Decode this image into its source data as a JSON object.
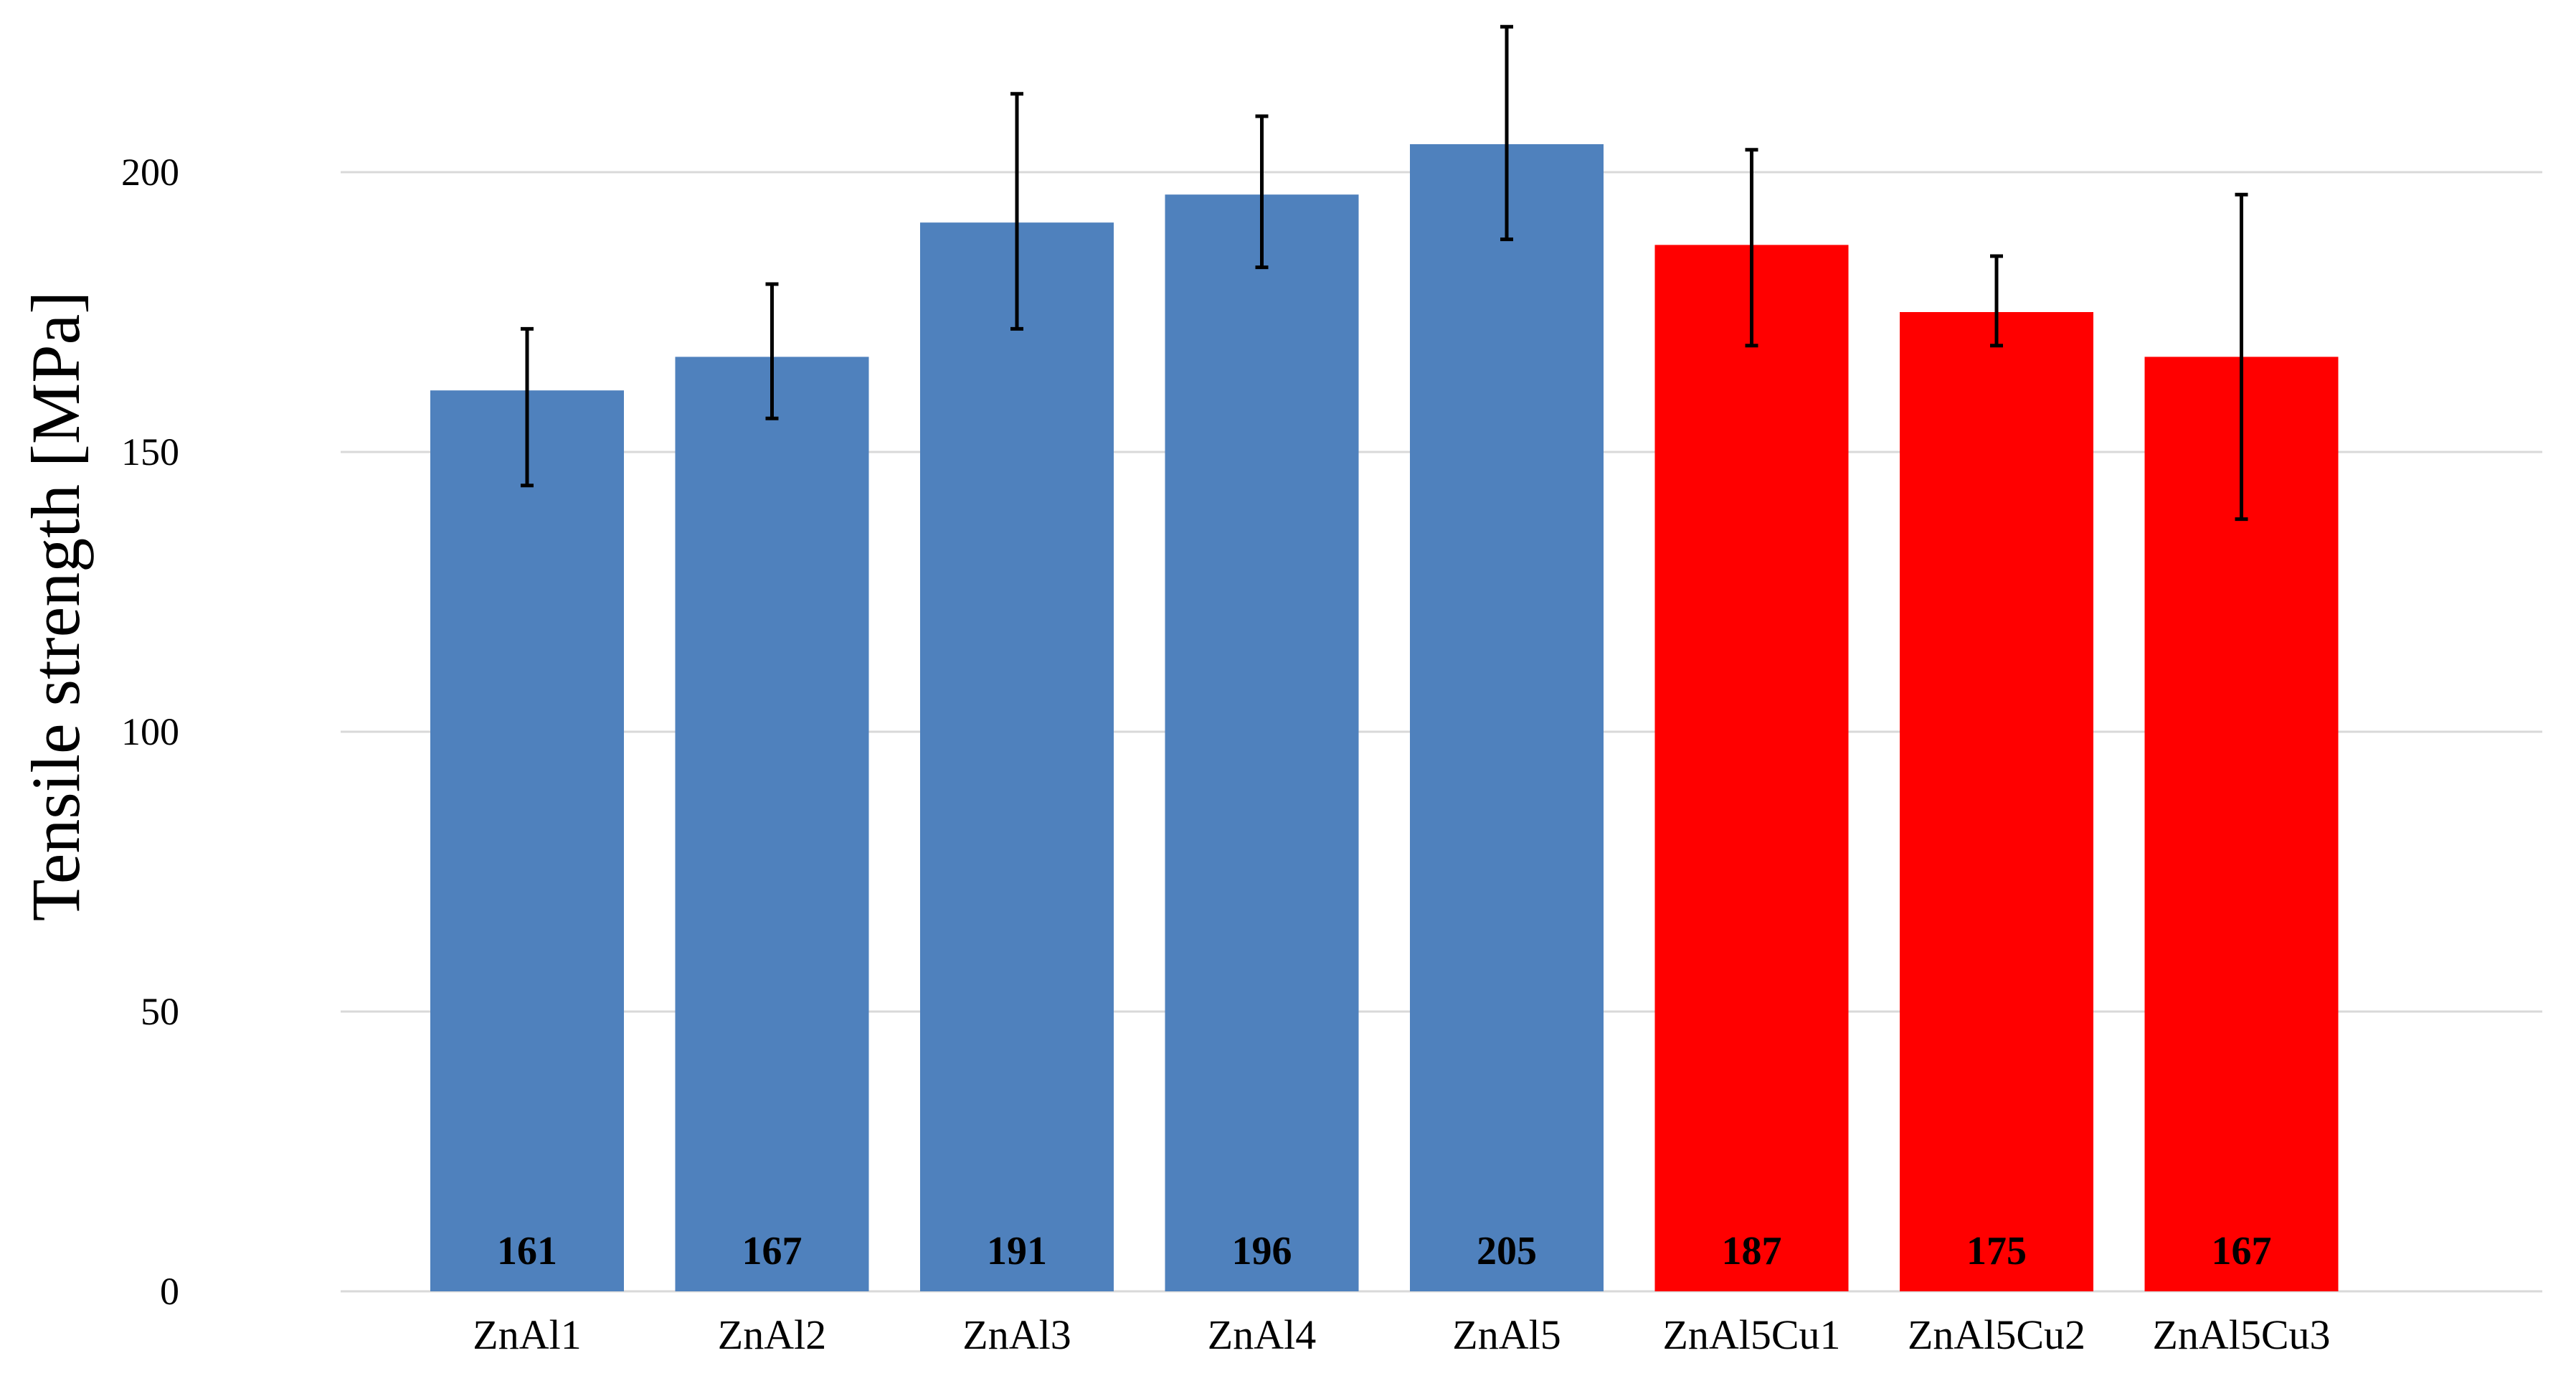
{
  "chart_data": {
    "type": "bar",
    "title": "",
    "xlabel": "",
    "ylabel": "Tensile strength [MPa]",
    "ylim": [
      0,
      220
    ],
    "yticks": [
      0,
      50,
      100,
      150,
      200
    ],
    "grid": true,
    "legend": "none",
    "categories": [
      "ZnAl1",
      "ZnAl2",
      "ZnAl3",
      "ZnAl4",
      "ZnAl5",
      "ZnAl5Cu1",
      "ZnAl5Cu2",
      "ZnAl5Cu3"
    ],
    "values": [
      161,
      167,
      191,
      196,
      205,
      187,
      175,
      167
    ],
    "data_labels": [
      "161",
      "167",
      "191",
      "196",
      "205",
      "187",
      "175",
      "167"
    ],
    "error_bars": [
      {
        "low": 144,
        "high": 172
      },
      {
        "low": 156,
        "high": 180
      },
      {
        "low": 172,
        "high": 214
      },
      {
        "low": 183,
        "high": 210
      },
      {
        "low": 188,
        "high": 226
      },
      {
        "low": 169,
        "high": 204
      },
      {
        "low": 169,
        "high": 185
      },
      {
        "low": 138,
        "high": 196
      }
    ],
    "bar_colors": [
      "#4F81BD",
      "#4F81BD",
      "#4F81BD",
      "#4F81BD",
      "#4F81BD",
      "#FF0000",
      "#FF0000",
      "#FF0000"
    ],
    "gridline_color": "#D9D9D9",
    "error_bar_color": "#000000"
  }
}
